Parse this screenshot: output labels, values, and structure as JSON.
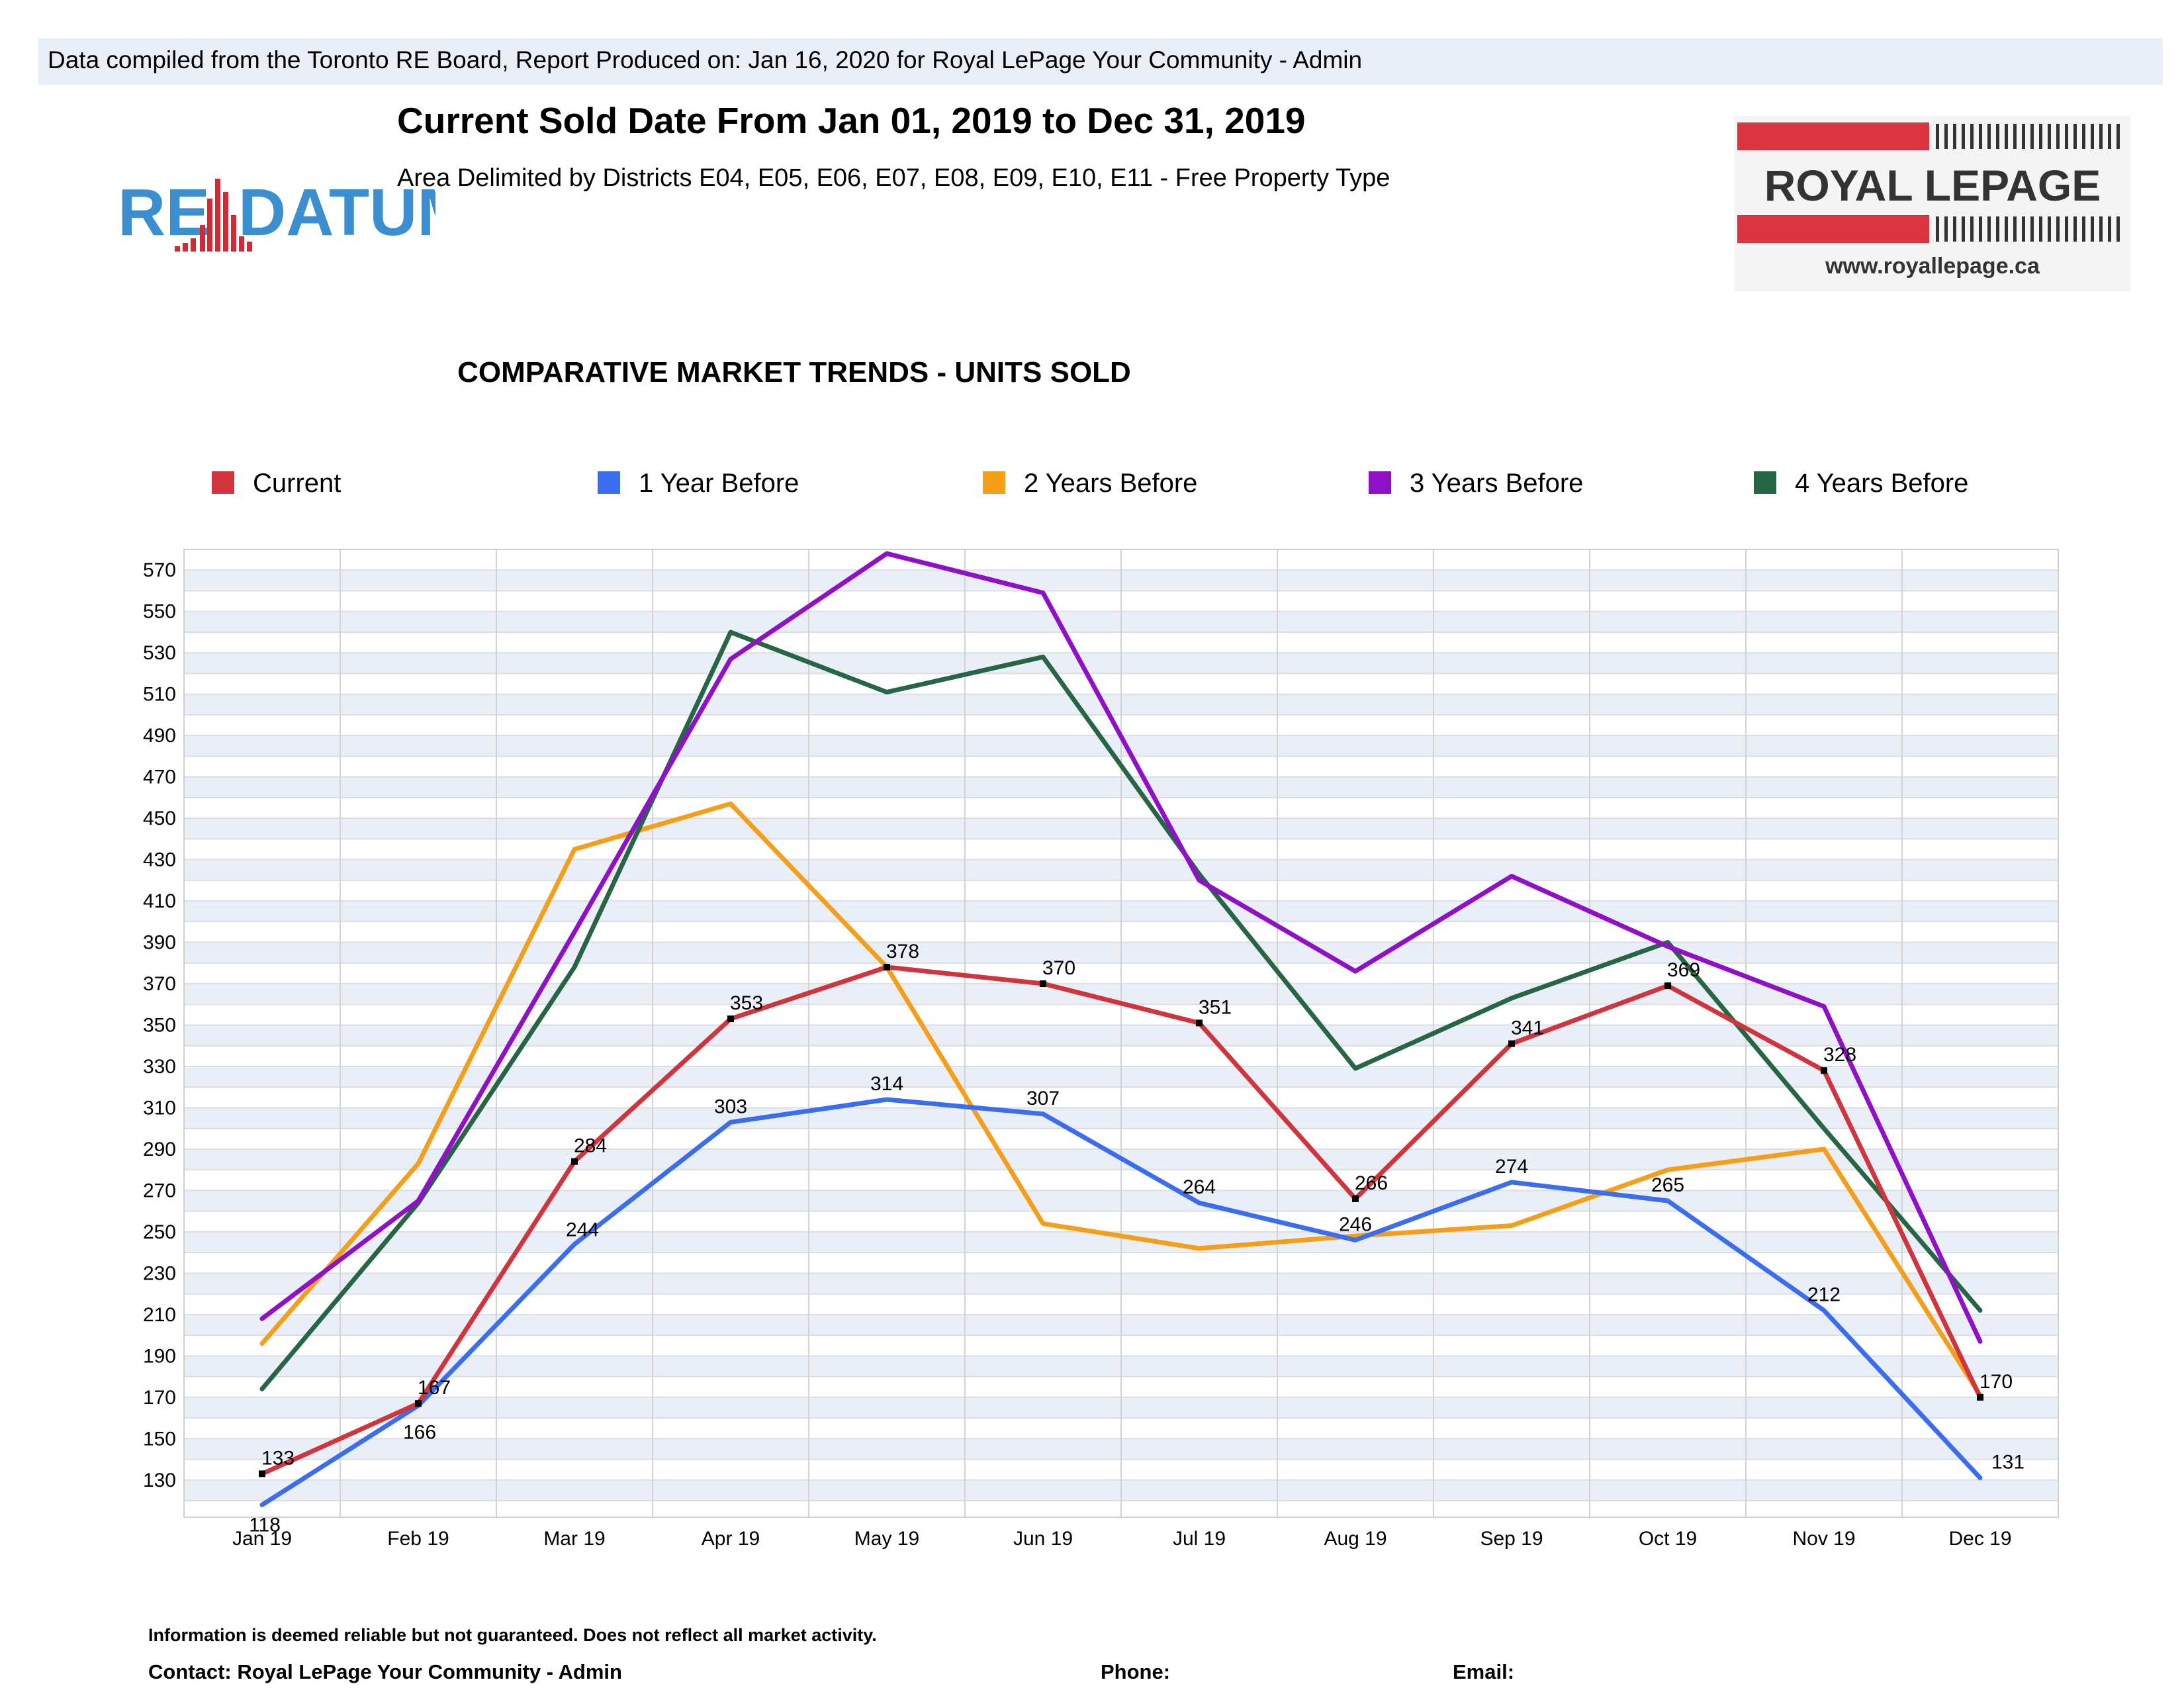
{
  "header": {
    "banner": "Data compiled from the Toronto RE Board, Report Produced on: Jan 16, 2020 for Royal LePage Your Community -  Admin",
    "title": "Current Sold Date From Jan 01, 2019 to Dec 31, 2019",
    "subtitle": "Area Delimited by Districts E04, E05, E06, E07, E08, E09, E10, E11 - Free Property Type"
  },
  "logos": {
    "redatum": {
      "left_text": "RE",
      "right_text": "DATUM",
      "color": "#3b8fd1",
      "accent": "#d02b34"
    },
    "royal_lepage": {
      "text": "ROYAL LEPAGE",
      "url": "www.royallepage.ca",
      "red": "#d9343f"
    }
  },
  "footer": {
    "note": "Information is deemed reliable but not guaranteed. Does not reflect all market activity.",
    "contact": "Contact: Royal LePage Your Community -  Admin",
    "phone": "Phone:",
    "email": "Email:"
  },
  "chart_data": {
    "type": "line",
    "title": "COMPARATIVE MARKET TRENDS - UNITS SOLD",
    "categories": [
      "Jan 19",
      "Feb 19",
      "Mar 19",
      "Apr 19",
      "May 19",
      "Jun 19",
      "Jul 19",
      "Aug 19",
      "Sep 19",
      "Oct 19",
      "Nov 19",
      "Dec 19"
    ],
    "yticks": [
      130,
      150,
      170,
      190,
      210,
      230,
      250,
      270,
      290,
      310,
      330,
      350,
      370,
      390,
      410,
      430,
      450,
      470,
      490,
      510,
      530,
      550,
      570
    ],
    "ylim": [
      112,
      580
    ],
    "grid": true,
    "legend_position": "top",
    "series": [
      {
        "name": "Current",
        "color": "#d0343c",
        "labeled": true,
        "markers": true,
        "values": [
          133,
          167,
          284,
          353,
          378,
          370,
          351,
          266,
          341,
          369,
          328,
          170
        ],
        "labels": [
          "133",
          "167",
          "284",
          "353",
          "378",
          "370",
          "351",
          "266",
          "341",
          "369",
          "328",
          "170"
        ]
      },
      {
        "name": "1 Year Before",
        "color": "#3b6df0",
        "labeled": true,
        "markers": false,
        "values": [
          118,
          166,
          244,
          303,
          314,
          307,
          264,
          246,
          274,
          265,
          212,
          131
        ],
        "labels": [
          "118",
          "166",
          "244",
          "303",
          "314",
          "307",
          "264",
          "246",
          "274",
          "265",
          "212",
          "131"
        ]
      },
      {
        "name": "2 Years Before",
        "color": "#f59e1a",
        "labeled": false,
        "markers": false,
        "values": [
          196,
          283,
          435,
          457,
          378,
          254,
          242,
          248,
          253,
          280,
          290,
          171
        ]
      },
      {
        "name": "3 Years Before",
        "color": "#9010c8",
        "labeled": false,
        "markers": false,
        "values": [
          208,
          265,
          395,
          527,
          578,
          559,
          420,
          376,
          422,
          388,
          359,
          197
        ]
      },
      {
        "name": "4 Years Before",
        "color": "#266645",
        "labeled": false,
        "markers": false,
        "values": [
          174,
          264,
          378,
          540,
          511,
          528,
          423,
          329,
          363,
          390,
          300,
          212
        ]
      }
    ]
  }
}
